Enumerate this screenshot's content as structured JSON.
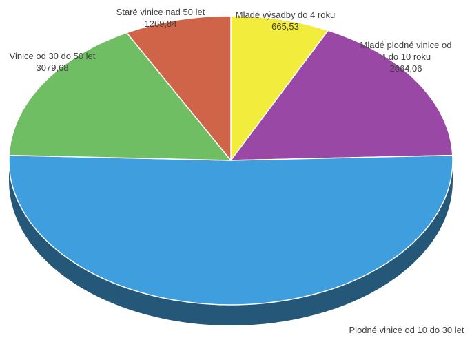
{
  "chart_data": {
    "type": "pie",
    "title": "",
    "slices": [
      {
        "label_lines": [
          "Mladé výsadby do 4 roku"
        ],
        "value_text": "665,53",
        "value": 665.53,
        "color": "#f2ec3c"
      },
      {
        "label_lines": [
          "Mladé plodné vinice od",
          "4 do 10 roku"
        ],
        "value_text": "2664,06",
        "value": 2664.06,
        "color": "#9a48a6"
      },
      {
        "label_lines": [
          "Plodné vinice od 10 do 30 let"
        ],
        "value_text": "",
        "value": null,
        "color": "#3f9ede"
      },
      {
        "label_lines": [
          "Vinice od 30 do 50 let"
        ],
        "value_text": "3079,68",
        "value": 3079.68,
        "color": "#6fbe63"
      },
      {
        "label_lines": [
          "Staré vinice nad 50 let"
        ],
        "value_text": "1269,84",
        "value": 1269.84,
        "color": "#cf6448"
      }
    ],
    "legend": "none",
    "depth_3d": true
  }
}
